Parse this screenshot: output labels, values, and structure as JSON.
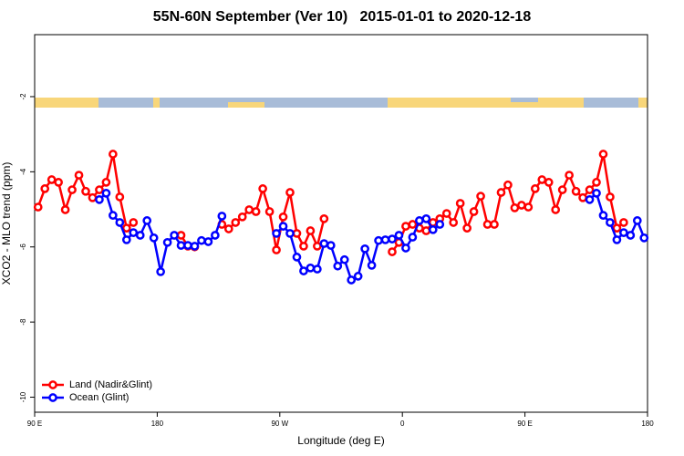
{
  "chart_data": {
    "type": "line",
    "title": "55N-60N September (Ver 10)   2015-01-01 to 2020-12-18",
    "xlabel": "Longitude (deg E)",
    "ylabel": "XCO2 - MLO trend (ppm)",
    "x": [
      92.5,
      97.5,
      102.5,
      107.5,
      112.5,
      117.5,
      122.5,
      127.5,
      132.5,
      137.5,
      142.5,
      147.5,
      152.5,
      157.5,
      162.5,
      167.5,
      172.5,
      177.5,
      182.5,
      187.5,
      192.5,
      197.5,
      202.5,
      207.5,
      212.5,
      217.5,
      222.5,
      227.5,
      232.5,
      237.5,
      242.5,
      247.5,
      252.5,
      257.5,
      262.5,
      267.5,
      272.5,
      277.5,
      282.5,
      287.5,
      292.5,
      297.5,
      302.5,
      307.5,
      312.5,
      317.5,
      322.5,
      327.5,
      332.5,
      337.5,
      342.5,
      347.5,
      352.5,
      357.5,
      362.5,
      367.5,
      372.5,
      377.5,
      382.5,
      387.5,
      392.5,
      397.5,
      402.5,
      407.5,
      412.5,
      417.5,
      422.5,
      427.5,
      432.5,
      437.5,
      442.5,
      447.5,
      452.5,
      457.5,
      462.5,
      467.5,
      472.5,
      477.5,
      482.5,
      487.5,
      492.5,
      497.5,
      502.5,
      507.5,
      512.5,
      517.5,
      522.5,
      527.5,
      532.5,
      537.5
    ],
    "series": [
      {
        "name": "Land (Nadir&Glint)",
        "color": "#ff0000",
        "values": [
          -4.94,
          -4.45,
          -4.21,
          -4.28,
          -5.01,
          -4.48,
          -4.09,
          -4.52,
          -4.69,
          -4.48,
          -4.28,
          -3.53,
          -4.67,
          -5.5,
          -5.35,
          null,
          null,
          null,
          null,
          null,
          null,
          -5.69,
          -5.98,
          -6.0,
          null,
          null,
          null,
          -5.4,
          -5.52,
          -5.35,
          -5.2,
          -5.01,
          -5.06,
          -4.45,
          -5.06,
          -6.08,
          -5.2,
          -4.55,
          -5.64,
          -5.98,
          -5.57,
          -5.98,
          -5.25,
          null,
          null,
          null,
          null,
          null,
          null,
          null,
          null,
          null,
          -6.13,
          -5.88,
          -5.45,
          -5.4,
          -5.5,
          -5.57,
          -5.35,
          -5.25,
          -5.11,
          -5.35,
          -4.84,
          -5.5,
          -5.06,
          -4.65,
          -5.4,
          -5.4,
          -4.55,
          -4.35,
          -4.96,
          -4.89,
          -4.94,
          -4.45,
          -4.21,
          -4.28,
          -5.01,
          -4.48,
          -4.09,
          -4.52,
          -4.69,
          -4.48,
          -4.28,
          -3.53,
          -4.67,
          -5.5,
          -5.35,
          null,
          null,
          null
        ]
      },
      {
        "name": "Ocean (Glint)",
        "color": "#0000ff",
        "values": [
          null,
          null,
          null,
          null,
          null,
          null,
          null,
          null,
          null,
          -4.74,
          -4.57,
          -5.16,
          -5.35,
          -5.81,
          -5.62,
          -5.69,
          -5.3,
          -5.76,
          -6.66,
          -5.88,
          -5.69,
          -5.96,
          -5.96,
          -5.98,
          -5.83,
          -5.86,
          -5.69,
          -5.18,
          null,
          null,
          null,
          null,
          null,
          null,
          null,
          -5.64,
          -5.45,
          -5.64,
          -6.27,
          -6.64,
          -6.56,
          -6.59,
          -5.91,
          -5.96,
          -6.51,
          -6.34,
          -6.88,
          -6.78,
          -6.05,
          -6.49,
          -5.83,
          -5.81,
          -5.79,
          -5.69,
          -6.03,
          -5.74,
          -5.3,
          -5.25,
          -5.54,
          -5.4,
          null,
          null,
          null,
          null,
          null,
          null,
          null,
          null,
          null,
          null,
          null,
          null,
          null,
          null,
          null,
          null,
          null,
          null,
          null,
          null,
          null,
          -4.74,
          -4.57,
          -5.16,
          -5.35,
          -5.81,
          -5.62,
          -5.69,
          -5.3,
          -5.76
        ]
      }
    ],
    "xlim": [
      90,
      540
    ],
    "xticks": [
      {
        "value": 90,
        "label": "90 E"
      },
      180,
      {
        "value": 270,
        "label": "90 W"
      },
      {
        "value": 360,
        "label": "0"
      },
      {
        "value": 450,
        "label": "90 E"
      },
      {
        "value": 540,
        "label": "180"
      }
    ],
    "ylim": [
      -10.4,
      -0.35
    ],
    "yticks": [
      -2,
      -4,
      -6,
      -8,
      -10
    ],
    "legend": "bottom-left"
  }
}
